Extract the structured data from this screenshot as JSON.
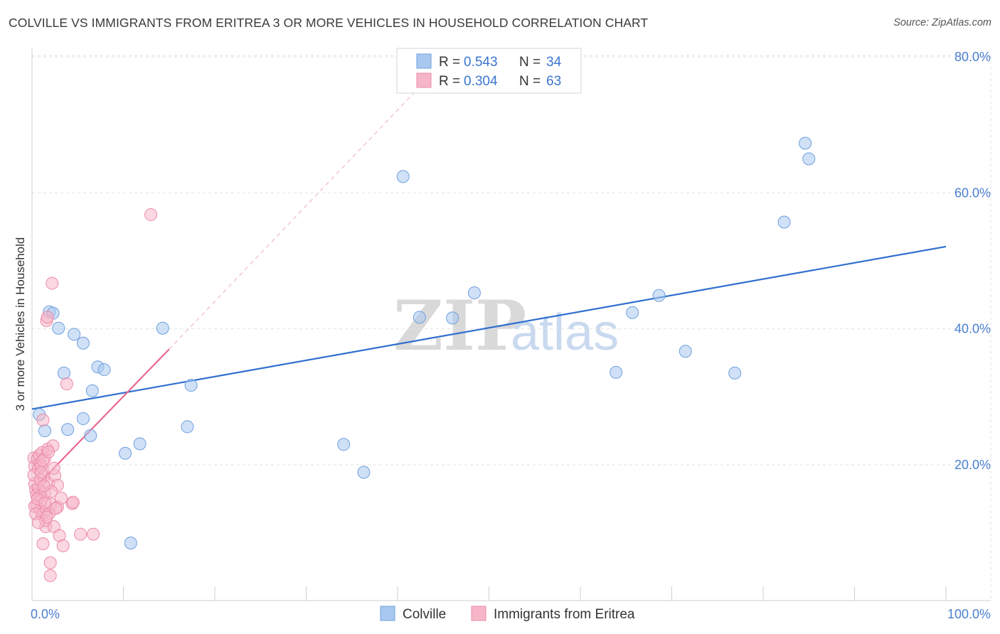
{
  "title": "COLVILLE VS IMMIGRANTS FROM ERITREA 3 OR MORE VEHICLES IN HOUSEHOLD CORRELATION CHART",
  "source": "Source: ZipAtlas.com",
  "watermark": {
    "zip": "ZIP",
    "atlas": "atlas"
  },
  "legend": {
    "rows": [
      {
        "r_label": "R =",
        "r_value": "0.543",
        "n_label": "N =",
        "n_value": "34"
      },
      {
        "r_label": "R =",
        "r_value": "0.304",
        "n_label": "N =",
        "n_value": "63"
      }
    ]
  },
  "chart_data": {
    "type": "scatter",
    "title": "COLVILLE VS IMMIGRANTS FROM ERITREA 3 OR MORE VEHICLES IN HOUSEHOLD CORRELATION CHART",
    "xlabel": "",
    "ylabel": "3 or more Vehicles in Household",
    "xlim": [
      0,
      100
    ],
    "ylim": [
      0,
      85
    ],
    "x_tick_labels": [
      "0.0%",
      "100.0%"
    ],
    "y_ticks": [
      20,
      40,
      60,
      80
    ],
    "y_tick_labels": [
      "20.0%",
      "40.0%",
      "60.0%",
      "80.0%"
    ],
    "grid": true,
    "legend_position": "top-center",
    "colors": {
      "colville_fill": "#a9c8f0",
      "colville_stroke": "#6f9fdc",
      "colville_line": "#2f6fcf",
      "eritrea_fill": "#f6b6c8",
      "eritrea_stroke": "#ec8aa8",
      "eritrea_line": "#e8688f",
      "tick_text": "#4a7fd0"
    },
    "series": [
      {
        "name": "Colville",
        "r": 0.543,
        "n": 34,
        "trend": {
          "x": [
            0,
            100
          ],
          "y": [
            28.2,
            52.1
          ]
        },
        "points": [
          [
            0.8,
            27.4
          ],
          [
            1.4,
            25.0
          ],
          [
            1.9,
            42.5
          ],
          [
            2.3,
            42.3
          ],
          [
            2.9,
            40.1
          ],
          [
            3.5,
            33.5
          ],
          [
            3.9,
            25.2
          ],
          [
            4.6,
            39.2
          ],
          [
            5.6,
            37.9
          ],
          [
            5.6,
            26.8
          ],
          [
            6.4,
            24.3
          ],
          [
            6.6,
            30.9
          ],
          [
            7.2,
            34.4
          ],
          [
            7.9,
            34.0
          ],
          [
            10.2,
            21.7
          ],
          [
            10.8,
            8.5
          ],
          [
            11.8,
            23.1
          ],
          [
            14.3,
            40.1
          ],
          [
            17.0,
            25.6
          ],
          [
            17.4,
            31.7
          ],
          [
            34.1,
            23.0
          ],
          [
            36.3,
            18.9
          ],
          [
            40.6,
            62.4
          ],
          [
            42.4,
            41.7
          ],
          [
            46.0,
            41.6
          ],
          [
            48.4,
            45.3
          ],
          [
            63.9,
            33.6
          ],
          [
            65.7,
            42.4
          ],
          [
            68.6,
            44.9
          ],
          [
            71.5,
            36.7
          ],
          [
            76.9,
            33.5
          ],
          [
            82.3,
            55.7
          ],
          [
            84.6,
            67.3
          ],
          [
            85.0,
            65.0
          ]
        ]
      },
      {
        "name": "Immigrants from Eritrea",
        "r": 0.304,
        "n": 63,
        "trend": {
          "x": [
            0,
            15
          ],
          "y": [
            16.2,
            37.0
          ]
        },
        "trend_extension": {
          "x": [
            15,
            42
          ],
          "y": [
            37.0,
            75.0
          ]
        },
        "points": [
          [
            0.2,
            21.0
          ],
          [
            0.3,
            19.8
          ],
          [
            0.3,
            17.2
          ],
          [
            0.4,
            16.3
          ],
          [
            0.5,
            15.6
          ],
          [
            0.5,
            14.1
          ],
          [
            0.6,
            20.9
          ],
          [
            0.7,
            19.4
          ],
          [
            0.7,
            16.6
          ],
          [
            0.8,
            21.4
          ],
          [
            0.8,
            15.4
          ],
          [
            0.9,
            13.3
          ],
          [
            0.9,
            20.2
          ],
          [
            1.0,
            19.8
          ],
          [
            1.0,
            14.8
          ],
          [
            1.1,
            21.8
          ],
          [
            1.1,
            12.7
          ],
          [
            1.2,
            26.6
          ],
          [
            1.2,
            8.4
          ],
          [
            1.3,
            18.3
          ],
          [
            1.3,
            13.0
          ],
          [
            1.4,
            21.0
          ],
          [
            1.4,
            15.9
          ],
          [
            1.5,
            10.9
          ],
          [
            1.5,
            11.8
          ],
          [
            1.6,
            41.2
          ],
          [
            1.7,
            41.7
          ],
          [
            1.7,
            22.3
          ],
          [
            1.8,
            17.3
          ],
          [
            1.9,
            12.9
          ],
          [
            2.0,
            5.6
          ],
          [
            2.0,
            3.7
          ],
          [
            2.1,
            14.2
          ],
          [
            2.2,
            46.7
          ],
          [
            2.3,
            22.8
          ],
          [
            2.4,
            10.9
          ],
          [
            2.5,
            18.4
          ],
          [
            2.8,
            17.0
          ],
          [
            2.8,
            13.8
          ],
          [
            3.0,
            9.6
          ],
          [
            3.2,
            15.1
          ],
          [
            3.4,
            8.1
          ],
          [
            3.8,
            31.9
          ],
          [
            4.4,
            14.3
          ],
          [
            4.5,
            14.5
          ],
          [
            5.3,
            9.8
          ],
          [
            6.7,
            9.8
          ],
          [
            13.0,
            56.8
          ],
          [
            0.2,
            18.5
          ],
          [
            0.3,
            13.9
          ],
          [
            0.6,
            15.0
          ],
          [
            0.9,
            17.8
          ],
          [
            1.0,
            18.9
          ],
          [
            1.2,
            20.6
          ],
          [
            1.4,
            14.4
          ],
          [
            1.6,
            12.3
          ],
          [
            1.8,
            21.9
          ],
          [
            2.1,
            16.1
          ],
          [
            2.4,
            19.5
          ],
          [
            2.6,
            13.6
          ],
          [
            0.4,
            12.8
          ],
          [
            0.7,
            11.5
          ],
          [
            1.3,
            16.9
          ]
        ]
      }
    ]
  }
}
